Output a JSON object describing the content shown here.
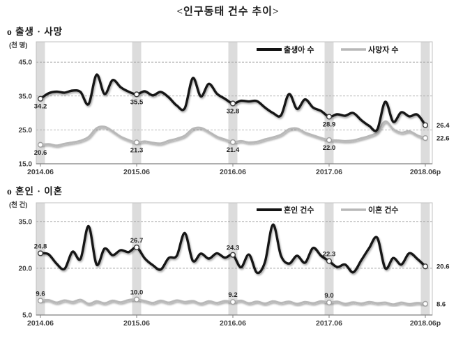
{
  "page_title": "<인구동태 건수 추이>",
  "sections": [
    {
      "heading": "o  출생 · 사망"
    },
    {
      "heading": "o  혼인 · 이혼"
    }
  ],
  "chart_data": [
    {
      "type": "line",
      "title": "출생 · 사망",
      "unit_label": "(천 명)",
      "x_description": "monthly, 2014.06 to 2018.06 (49 points)",
      "x_tick_labels": [
        "2014.06",
        "2015.06",
        "2016.06",
        "2017.06",
        "2018.06p"
      ],
      "june_indices": [
        0,
        12,
        24,
        36,
        48
      ],
      "y_ticks": [
        15,
        25,
        35,
        45
      ],
      "y_tick_labels": [
        "15.0",
        "25.0",
        "35.0",
        "45.0"
      ],
      "ylim": [
        15,
        51
      ],
      "grid": "horizontal dashed",
      "legend_position": "top inside",
      "band_color": "#dcdcdc",
      "series": [
        {
          "name": "출생아 수",
          "color": "#141414",
          "marker_stroke": "#3a3a3a",
          "label_side": "below",
          "point_labels": [
            "34.2",
            "35.5",
            "32.8",
            "28.9",
            "26.4"
          ],
          "values": [
            34.2,
            35.8,
            36.3,
            36.0,
            36.6,
            36.2,
            32.6,
            41.3,
            35.6,
            39.7,
            37.6,
            36.3,
            35.5,
            36.4,
            35.2,
            36.2,
            34.6,
            32.2,
            31.4,
            40.3,
            34.9,
            38.6,
            35.7,
            34.2,
            32.8,
            33.6,
            33.4,
            33.5,
            31.6,
            30.0,
            29.3,
            35.6,
            31.2,
            34.0,
            31.6,
            30.6,
            28.9,
            29.6,
            29.2,
            30.0,
            27.9,
            26.2,
            25.1,
            33.3,
            27.4,
            30.2,
            29.0,
            29.5,
            26.4
          ]
        },
        {
          "name": "사망자 수",
          "color": "#b8b8b8",
          "marker_stroke": "#9e9e9e",
          "label_side": "below",
          "point_labels": [
            "20.6",
            "21.3",
            "21.4",
            "22.0",
            "22.6"
          ],
          "values": [
            20.6,
            20.8,
            20.4,
            20.9,
            21.3,
            21.8,
            22.9,
            25.5,
            25.9,
            24.6,
            23.0,
            22.0,
            21.3,
            21.6,
            21.2,
            21.0,
            21.8,
            22.4,
            23.3,
            25.3,
            25.6,
            24.4,
            23.0,
            22.2,
            21.4,
            21.7,
            21.3,
            21.5,
            22.2,
            22.8,
            23.6,
            25.2,
            25.4,
            24.2,
            23.4,
            22.6,
            22.0,
            21.9,
            21.7,
            21.9,
            22.5,
            23.2,
            24.3,
            27.5,
            25.2,
            24.2,
            24.6,
            23.4,
            22.6
          ]
        }
      ]
    },
    {
      "type": "line",
      "title": "혼인 · 이혼",
      "unit_label": "(천 건)",
      "x_description": "monthly, 2014.06 to 2018.06 (49 points)",
      "x_tick_labels": [
        "2014.06",
        "2015.06",
        "2016.06",
        "2017.06",
        "2018.06p"
      ],
      "june_indices": [
        0,
        12,
        24,
        36,
        48
      ],
      "y_ticks": [
        5,
        20,
        35
      ],
      "y_tick_labels": [
        "5.0",
        "20.0",
        "35.0"
      ],
      "ylim": [
        5,
        41
      ],
      "grid": "horizontal dashed",
      "legend_position": "top inside",
      "band_color": "#dcdcdc",
      "series": [
        {
          "name": "혼인 건수",
          "color": "#141414",
          "marker_stroke": "#3a3a3a",
          "label_side": "above",
          "point_labels": [
            "24.8",
            "26.7",
            "24.3",
            "22.3",
            "20.6"
          ],
          "values": [
            24.8,
            24.5,
            21.5,
            19.8,
            25.3,
            23.0,
            33.5,
            21.2,
            26.3,
            24.2,
            25.8,
            25.2,
            26.7,
            23.2,
            21.0,
            19.6,
            23.3,
            24.0,
            31.3,
            22.4,
            24.7,
            23.1,
            24.8,
            23.4,
            24.3,
            20.3,
            24.4,
            18.6,
            22.0,
            34.0,
            24.0,
            21.5,
            24.0,
            21.8,
            26.5,
            24.0,
            22.3,
            20.4,
            21.2,
            18.7,
            22.5,
            26.5,
            29.8,
            20.0,
            23.3,
            21.2,
            24.8,
            23.0,
            20.6
          ]
        },
        {
          "name": "이혼 건수",
          "color": "#b8b8b8",
          "marker_stroke": "#9e9e9e",
          "label_side": "above",
          "point_labels": [
            "9.6",
            "10.0",
            "9.2",
            "9.0",
            "8.6"
          ],
          "values": [
            9.6,
            9.8,
            9.0,
            9.7,
            9.2,
            9.9,
            8.6,
            9.4,
            8.8,
            9.6,
            9.1,
            9.8,
            10.0,
            9.5,
            8.9,
            9.6,
            9.0,
            9.7,
            9.2,
            9.5,
            8.7,
            9.4,
            8.9,
            9.5,
            9.2,
            9.6,
            8.8,
            9.3,
            8.7,
            9.4,
            8.9,
            9.3,
            8.6,
            9.2,
            8.8,
            9.4,
            9.0,
            9.3,
            8.6,
            9.1,
            8.7,
            9.2,
            8.8,
            9.0,
            8.4,
            9.0,
            8.5,
            8.9,
            8.6
          ]
        }
      ]
    }
  ]
}
